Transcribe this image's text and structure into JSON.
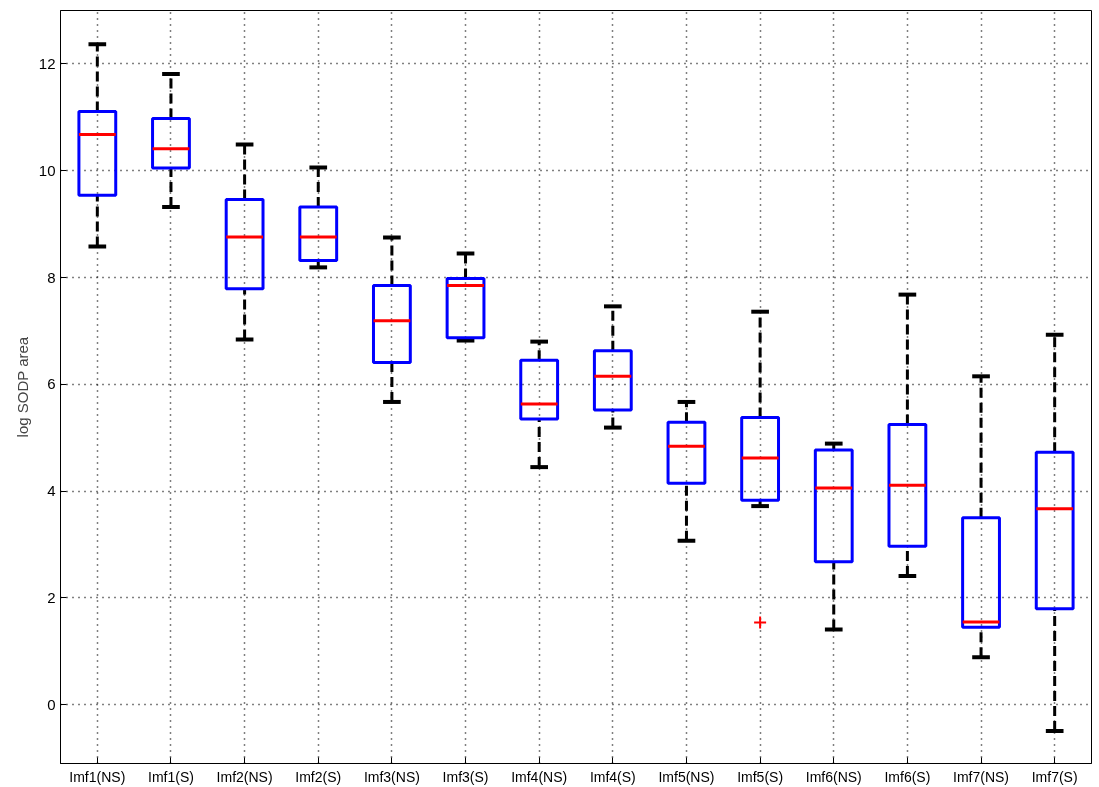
{
  "chart_data": {
    "type": "box",
    "ylabel": "log SODP area",
    "color": "#0000ff",
    "categories": [
      "Imf1(NS)",
      "Imf1(S)",
      "Imf2(NS)",
      "Imf2(S)",
      "Imf3(NS)",
      "Imf3(S)",
      "Imf4(NS)",
      "Imf4(S)",
      "Imf5(NS)",
      "Imf5(S)",
      "Imf6(NS)",
      "Imf6(S)",
      "Imf7(NS)",
      "Imf7(S)"
    ],
    "boxes": [
      {
        "low": 8.58,
        "q1": 9.54,
        "median": 10.68,
        "q3": 11.11,
        "high": 12.37
      },
      {
        "low": 9.32,
        "q1": 10.05,
        "median": 10.41,
        "q3": 10.98,
        "high": 11.81
      },
      {
        "low": 6.84,
        "q1": 7.79,
        "median": 8.76,
        "q3": 9.46,
        "high": 10.49
      },
      {
        "low": 8.19,
        "q1": 8.32,
        "median": 8.76,
        "q3": 9.32,
        "high": 10.06
      },
      {
        "low": 5.67,
        "q1": 6.41,
        "median": 7.19,
        "q3": 7.85,
        "high": 8.75
      },
      {
        "low": 6.82,
        "q1": 6.87,
        "median": 7.85,
        "q3": 7.98,
        "high": 8.45
      },
      {
        "low": 4.45,
        "q1": 5.35,
        "median": 5.63,
        "q3": 6.45,
        "high": 6.8
      },
      {
        "low": 5.19,
        "q1": 5.52,
        "median": 6.15,
        "q3": 6.63,
        "high": 7.46
      },
      {
        "low": 3.07,
        "q1": 4.15,
        "median": 4.84,
        "q3": 5.29,
        "high": 5.67
      },
      {
        "low": 3.72,
        "q1": 3.83,
        "median": 4.62,
        "q3": 5.38,
        "high": 7.36,
        "outliers": [
          1.54
        ]
      },
      {
        "low": 1.41,
        "q1": 2.68,
        "median": 4.06,
        "q3": 4.77,
        "high": 4.89
      },
      {
        "low": 2.41,
        "q1": 2.97,
        "median": 4.11,
        "q3": 5.25,
        "high": 7.68
      },
      {
        "low": 0.89,
        "q1": 1.45,
        "median": 1.55,
        "q3": 3.5,
        "high": 6.15
      },
      {
        "low": -0.49,
        "q1": 1.8,
        "median": 3.67,
        "q3": 4.73,
        "high": 6.93
      }
    ],
    "ylim": [
      -1.1,
      13
    ],
    "yticks": [
      0,
      2,
      4,
      6,
      8,
      10,
      12
    ],
    "grid": true
  }
}
